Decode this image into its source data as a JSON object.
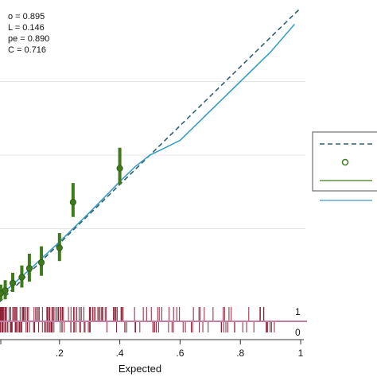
{
  "chart_data": {
    "type": "scatter",
    "title": "",
    "xlabel": "Expected",
    "ylabel": "",
    "xlim": [
      0,
      1
    ],
    "ylim": [
      0,
      1
    ],
    "x_ticks": [
      {
        "value": 0.2,
        "label": ".2"
      },
      {
        "value": 0.4,
        "label": ".4"
      },
      {
        "value": 0.6,
        "label": ".6"
      },
      {
        "value": 0.8,
        "label": ".8"
      },
      {
        "value": 1.0,
        "label": "1"
      }
    ],
    "y_gridlines": [
      0.25,
      0.5,
      0.75
    ],
    "grid": true,
    "statistics": [
      "o = 0.895",
      "L = 0.146",
      "pe = 0.890",
      "C = 0.716"
    ],
    "legend_placement": "right",
    "series": [
      {
        "kind": "reference_line",
        "style": "dashed",
        "color": "#2f5f6e",
        "points": [
          [
            0,
            0
          ],
          [
            1,
            1
          ]
        ]
      },
      {
        "kind": "grouped_observations",
        "color": "#3f7a1d",
        "points": [
          {
            "x": 0.005,
            "y": 0.03,
            "lo": 0.005,
            "hi": 0.06
          },
          {
            "x": 0.02,
            "y": 0.04,
            "lo": 0.01,
            "hi": 0.075
          },
          {
            "x": 0.045,
            "y": 0.065,
            "lo": 0.035,
            "hi": 0.1
          },
          {
            "x": 0.075,
            "y": 0.085,
            "lo": 0.05,
            "hi": 0.125
          },
          {
            "x": 0.1,
            "y": 0.115,
            "lo": 0.07,
            "hi": 0.165
          },
          {
            "x": 0.14,
            "y": 0.135,
            "lo": 0.09,
            "hi": 0.19
          },
          {
            "x": 0.2,
            "y": 0.185,
            "lo": 0.14,
            "hi": 0.235
          },
          {
            "x": 0.245,
            "y": 0.34,
            "lo": 0.29,
            "hi": 0.405
          },
          {
            "x": 0.4,
            "y": 0.455,
            "lo": 0.4,
            "hi": 0.525
          }
        ]
      },
      {
        "kind": "smoothed_fit",
        "color": "#3a9ec4",
        "points": [
          [
            0,
            0.02
          ],
          [
            0.1,
            0.11
          ],
          [
            0.2,
            0.205
          ],
          [
            0.3,
            0.305
          ],
          [
            0.4,
            0.41
          ],
          [
            0.45,
            0.46
          ],
          [
            0.5,
            0.5
          ],
          [
            0.55,
            0.525
          ],
          [
            0.6,
            0.55
          ],
          [
            0.7,
            0.65
          ],
          [
            0.8,
            0.75
          ],
          [
            0.9,
            0.85
          ],
          [
            0.98,
            0.945
          ]
        ]
      }
    ],
    "rug_labels": [
      "1",
      "0"
    ]
  }
}
